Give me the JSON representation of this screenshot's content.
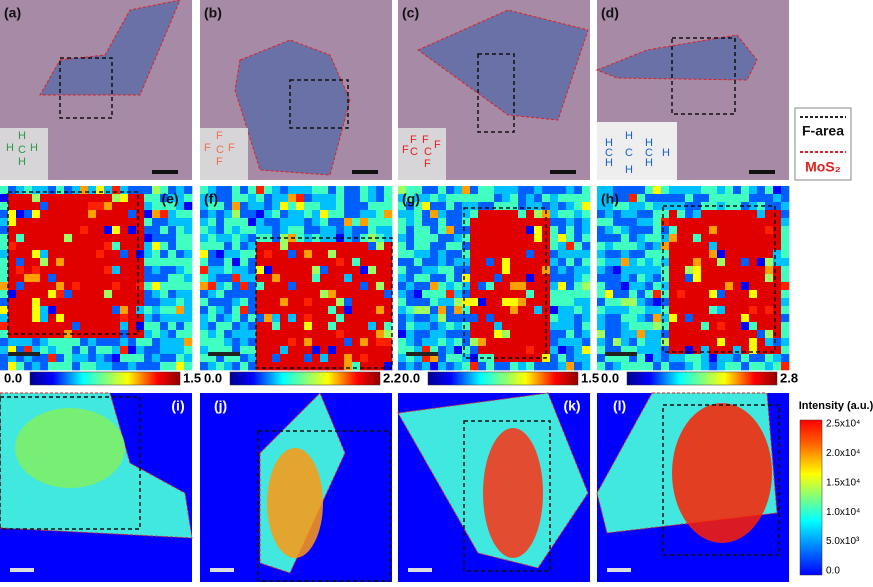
{
  "panels": [
    {
      "label": "(a)"
    },
    {
      "label": "(b)"
    },
    {
      "label": "(c)"
    },
    {
      "label": "(d)"
    },
    {
      "label": "(e)"
    },
    {
      "label": "(f)"
    },
    {
      "label": "(g)"
    },
    {
      "label": "(h)"
    },
    {
      "label": "(i)"
    },
    {
      "label": "(j)"
    },
    {
      "label": "(k)"
    },
    {
      "label": "(l)"
    }
  ],
  "molecules": [
    {
      "atoms": [
        "H",
        "C",
        "H",
        "H",
        "H"
      ]
    },
    {
      "atoms": [
        "F",
        "C",
        "F",
        "F",
        "F"
      ]
    },
    {
      "atoms": [
        "F",
        "F",
        "C",
        "F",
        "C",
        "F",
        "F"
      ]
    },
    {
      "atoms": [
        "H",
        "H",
        "H",
        "H",
        "C",
        "C",
        "C",
        "H",
        "H",
        "H"
      ]
    }
  ],
  "legend": {
    "items": [
      "F-area",
      "MoS₂"
    ]
  },
  "colorbars": [
    {
      "min": "0.0",
      "max": "1.5"
    },
    {
      "min": "0.0",
      "max": "2.2"
    },
    {
      "min": "0.0",
      "max": "1.5"
    },
    {
      "min": "0.0",
      "max": "2.8"
    }
  ],
  "intensity_bar": {
    "title": "Intensity (a.u.)",
    "ticks": [
      "2.5x10⁴",
      "2.0x10⁴",
      "1.5x10⁴",
      "1.0x10⁴",
      "5.0x10³",
      "0.0"
    ]
  }
}
